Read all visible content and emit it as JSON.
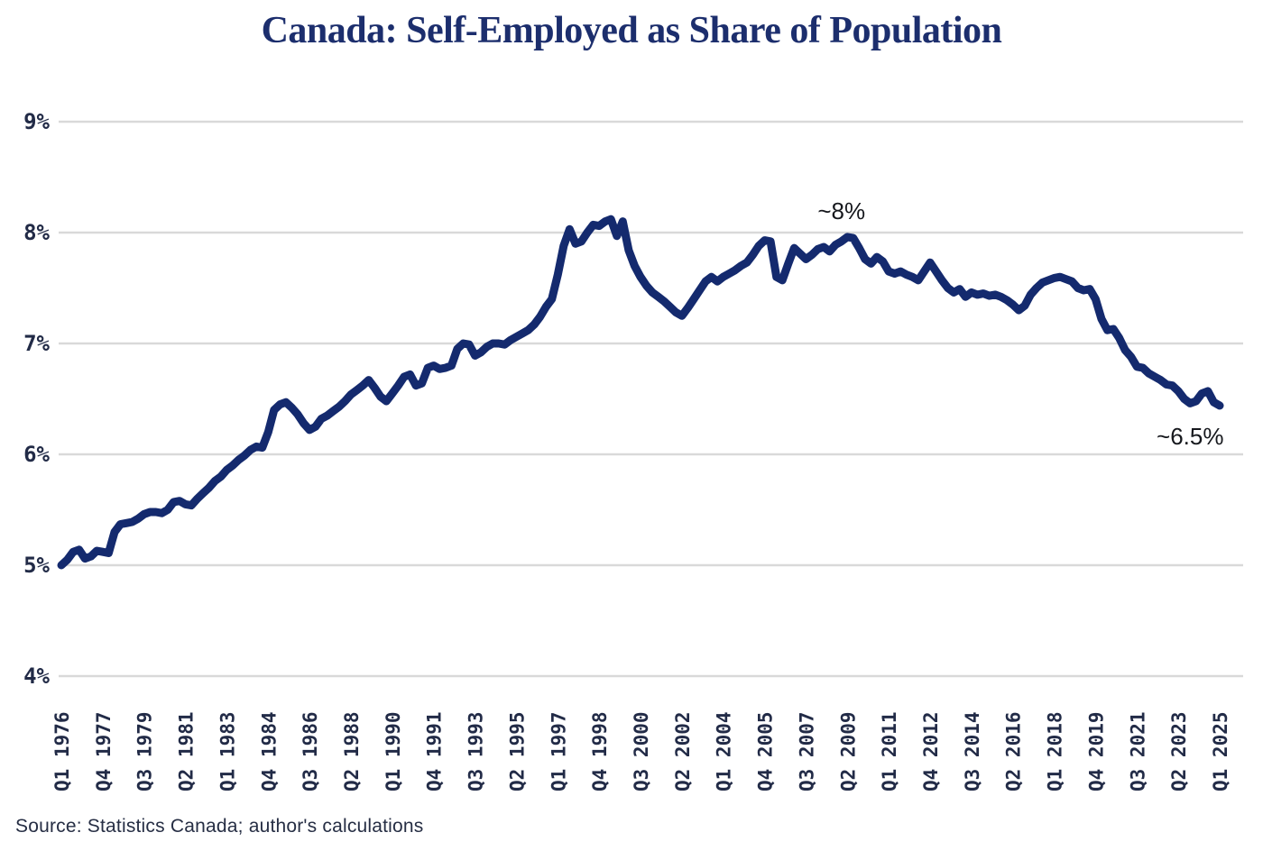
{
  "footer": {
    "source": "Source: Statistics Canada; author's calculations"
  },
  "colors": {
    "line": "#142a6e",
    "grid": "#d9d9d9",
    "axis_text": "#222b47",
    "title": "#1c2e6d",
    "annotation": "#16181d",
    "background": "#ffffff"
  },
  "chart_data": {
    "type": "line",
    "title": "Canada: Self-Employed as Share of Population",
    "xlabel": "",
    "ylabel": "",
    "x_start": "Q1 1976",
    "x_end": "Q1 2025",
    "x_frequency": "quarterly",
    "grid": "horizontal-only",
    "legend": "none",
    "ylim": [
      4,
      9
    ],
    "y_ticks": [
      {
        "label": "9%",
        "value": 9
      },
      {
        "label": "8%",
        "value": 8
      },
      {
        "label": "7%",
        "value": 7
      },
      {
        "label": "6%",
        "value": 6
      },
      {
        "label": "5%",
        "value": 5
      },
      {
        "label": "4%",
        "value": 4
      }
    ],
    "x_ticks": [
      {
        "label": "Q1 1976",
        "quarter_index": 0
      },
      {
        "label": "Q4 1977",
        "quarter_index": 7
      },
      {
        "label": "Q3 1979",
        "quarter_index": 14
      },
      {
        "label": "Q2 1981",
        "quarter_index": 21
      },
      {
        "label": "Q1 1983",
        "quarter_index": 28
      },
      {
        "label": "Q4 1984",
        "quarter_index": 35
      },
      {
        "label": "Q3 1986",
        "quarter_index": 42
      },
      {
        "label": "Q2 1988",
        "quarter_index": 49
      },
      {
        "label": "Q1 1990",
        "quarter_index": 56
      },
      {
        "label": "Q4 1991",
        "quarter_index": 63
      },
      {
        "label": "Q3 1993",
        "quarter_index": 70
      },
      {
        "label": "Q2 1995",
        "quarter_index": 77
      },
      {
        "label": "Q1 1997",
        "quarter_index": 84
      },
      {
        "label": "Q4 1998",
        "quarter_index": 91
      },
      {
        "label": "Q3 2000",
        "quarter_index": 98
      },
      {
        "label": "Q2 2002",
        "quarter_index": 105
      },
      {
        "label": "Q1 2004",
        "quarter_index": 112
      },
      {
        "label": "Q4 2005",
        "quarter_index": 119
      },
      {
        "label": "Q3 2007",
        "quarter_index": 126
      },
      {
        "label": "Q2 2009",
        "quarter_index": 133
      },
      {
        "label": "Q1 2011",
        "quarter_index": 140
      },
      {
        "label": "Q4 2012",
        "quarter_index": 147
      },
      {
        "label": "Q3 2014",
        "quarter_index": 154
      },
      {
        "label": "Q2 2016",
        "quarter_index": 161
      },
      {
        "label": "Q1 2018",
        "quarter_index": 168
      },
      {
        "label": "Q4 2019",
        "quarter_index": 175
      },
      {
        "label": "Q3 2021",
        "quarter_index": 182
      },
      {
        "label": "Q2 2023",
        "quarter_index": 189
      },
      {
        "label": "Q1 2025",
        "quarter_index": 196
      }
    ],
    "series": [
      {
        "name": "Self-employed as share of population (%)",
        "color": "#142a6e",
        "values": [
          5.0,
          5.05,
          5.12,
          5.14,
          5.06,
          5.08,
          5.13,
          5.12,
          5.11,
          5.3,
          5.37,
          5.38,
          5.39,
          5.42,
          5.46,
          5.48,
          5.48,
          5.47,
          5.5,
          5.57,
          5.58,
          5.55,
          5.54,
          5.6,
          5.65,
          5.7,
          5.76,
          5.8,
          5.86,
          5.9,
          5.95,
          5.99,
          6.04,
          6.07,
          6.06,
          6.2,
          6.4,
          6.45,
          6.47,
          6.42,
          6.36,
          6.28,
          6.22,
          6.25,
          6.32,
          6.35,
          6.39,
          6.43,
          6.48,
          6.54,
          6.58,
          6.62,
          6.67,
          6.6,
          6.52,
          6.48,
          6.55,
          6.62,
          6.7,
          6.72,
          6.62,
          6.64,
          6.78,
          6.8,
          6.77,
          6.78,
          6.8,
          6.95,
          7.0,
          6.99,
          6.89,
          6.92,
          6.97,
          7.0,
          7.0,
          6.99,
          7.03,
          7.06,
          7.09,
          7.12,
          7.17,
          7.24,
          7.33,
          7.4,
          7.62,
          7.88,
          8.03,
          7.9,
          7.92,
          8.0,
          8.07,
          8.06,
          8.1,
          8.12,
          7.97,
          8.1,
          7.84,
          7.7,
          7.6,
          7.52,
          7.46,
          7.42,
          7.38,
          7.33,
          7.28,
          7.25,
          7.32,
          7.4,
          7.48,
          7.56,
          7.6,
          7.56,
          7.6,
          7.63,
          7.66,
          7.7,
          7.73,
          7.8,
          7.88,
          7.93,
          7.92,
          7.6,
          7.57,
          7.72,
          7.86,
          7.81,
          7.76,
          7.8,
          7.85,
          7.87,
          7.83,
          7.89,
          7.92,
          7.96,
          7.95,
          7.86,
          7.76,
          7.72,
          7.78,
          7.74,
          7.65,
          7.63,
          7.65,
          7.62,
          7.6,
          7.57,
          7.65,
          7.73,
          7.65,
          7.57,
          7.5,
          7.46,
          7.49,
          7.42,
          7.46,
          7.44,
          7.45,
          7.43,
          7.44,
          7.42,
          7.39,
          7.35,
          7.3,
          7.34,
          7.44,
          7.5,
          7.55,
          7.57,
          7.59,
          7.6,
          7.58,
          7.56,
          7.5,
          7.48,
          7.49,
          7.4,
          7.22,
          7.12,
          7.13,
          7.05,
          6.94,
          6.88,
          6.79,
          6.78,
          6.73,
          6.7,
          6.67,
          6.63,
          6.62,
          6.57,
          6.5,
          6.46,
          6.48,
          6.55,
          6.57,
          6.47,
          6.44
        ]
      }
    ],
    "annotations": [
      {
        "label": "~8%",
        "quarter_index": 132,
        "anchor_value": 8.12
      },
      {
        "label": "~6.5%",
        "quarter_index": 191,
        "anchor_value": 6.09
      }
    ]
  }
}
